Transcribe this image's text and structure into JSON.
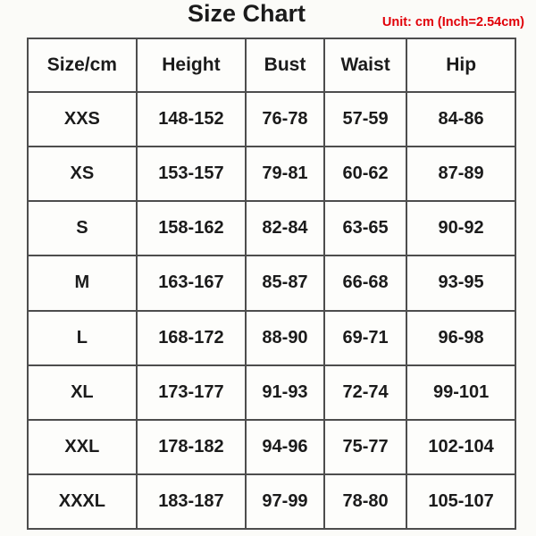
{
  "page": {
    "title": "Size Chart",
    "unit_note": "Unit: cm (Inch=2.54cm)"
  },
  "chart_data": {
    "type": "table",
    "title": "Size Chart",
    "unit_note": "Unit: cm (Inch=2.54cm)",
    "columns": [
      "Size/cm",
      "Height",
      "Bust",
      "Waist",
      "Hip"
    ],
    "rows": [
      [
        "XXS",
        "148-152",
        "76-78",
        "57-59",
        "84-86"
      ],
      [
        "XS",
        "153-157",
        "79-81",
        "60-62",
        "87-89"
      ],
      [
        "S",
        "158-162",
        "82-84",
        "63-65",
        "90-92"
      ],
      [
        "M",
        "163-167",
        "85-87",
        "66-68",
        "93-95"
      ],
      [
        "L",
        "168-172",
        "88-90",
        "69-71",
        "96-98"
      ],
      [
        "XL",
        "173-177",
        "91-93",
        "72-74",
        "99-101"
      ],
      [
        "XXL",
        "178-182",
        "94-96",
        "75-77",
        "102-104"
      ],
      [
        "XXXL",
        "183-187",
        "97-99",
        "78-80",
        "105-107"
      ]
    ],
    "layout": {
      "grid": "all-borders",
      "header_position": "top"
    },
    "colors": {
      "title_text": "#1b1b1b",
      "unit_note_text": "#e10008",
      "cell_text": "#1b1b1b",
      "border": "#4d4d4d",
      "background": "#fbfbf8"
    }
  }
}
